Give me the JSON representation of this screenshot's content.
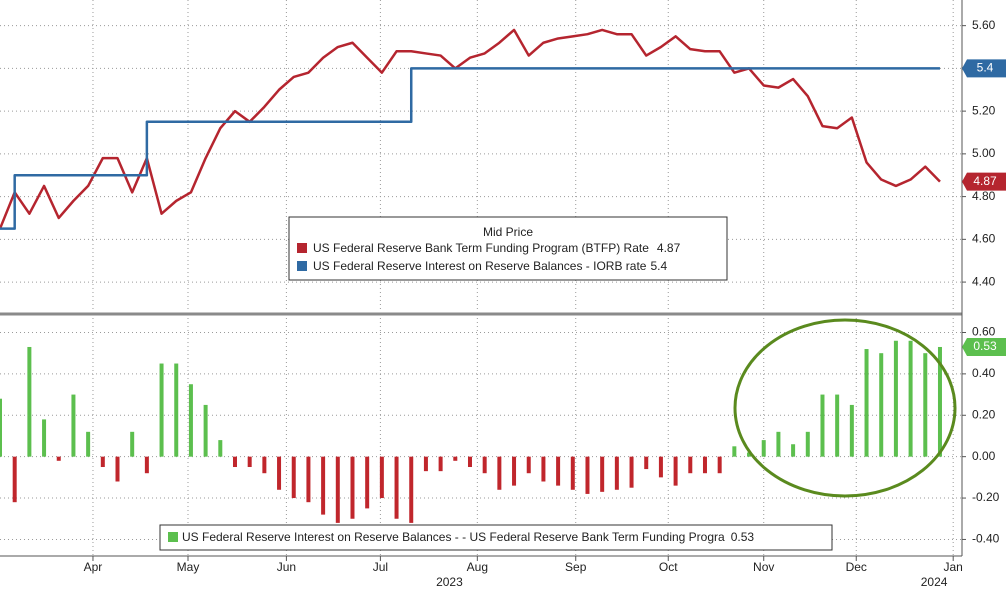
{
  "chart_data": [
    {
      "type": "line",
      "x": [
        0,
        1,
        2,
        3,
        4,
        5,
        6,
        7,
        8,
        9,
        10,
        11,
        12,
        13,
        14,
        15,
        16,
        17,
        18,
        19,
        20,
        21,
        22,
        23,
        24,
        25,
        26,
        27,
        28,
        29,
        30,
        31,
        32,
        33,
        34,
        35,
        36,
        37,
        38,
        39,
        40,
        41,
        42,
        43,
        44,
        45,
        46,
        47,
        48,
        49,
        50,
        51,
        52,
        53,
        54,
        55,
        56,
        57,
        58,
        59,
        60,
        61,
        62,
        63,
        64
      ],
      "legend_title": "Mid Price",
      "series": [
        {
          "name": "US Federal Reserve Bank Term Funding Program (BTFP) Rate",
          "color": "#b5252f",
          "values": [
            4.65,
            4.82,
            4.72,
            4.85,
            4.7,
            4.78,
            4.85,
            4.98,
            4.98,
            4.82,
            4.98,
            4.72,
            4.78,
            4.82,
            4.98,
            5.12,
            5.2,
            5.15,
            5.22,
            5.3,
            5.36,
            5.38,
            5.45,
            5.5,
            5.52,
            5.45,
            5.38,
            5.48,
            5.48,
            5.47,
            5.46,
            5.4,
            5.45,
            5.47,
            5.52,
            5.58,
            5.46,
            5.52,
            5.54,
            5.55,
            5.56,
            5.58,
            5.56,
            5.56,
            5.46,
            5.5,
            5.55,
            5.49,
            5.48,
            5.48,
            5.38,
            5.4,
            5.32,
            5.31,
            5.35,
            5.27,
            5.13,
            5.12,
            5.17,
            4.96,
            4.88,
            4.85,
            4.88,
            4.94,
            4.87
          ]
        },
        {
          "name": "US Federal Reserve Interest on Reserve Balances - IORB rate",
          "color": "#2f6aa3",
          "step": true,
          "values": [
            4.65,
            4.9,
            4.9,
            4.9,
            4.9,
            4.9,
            4.9,
            4.9,
            4.9,
            4.9,
            5.15,
            5.15,
            5.15,
            5.15,
            5.15,
            5.15,
            5.15,
            5.15,
            5.15,
            5.15,
            5.15,
            5.15,
            5.15,
            5.15,
            5.15,
            5.15,
            5.15,
            5.15,
            5.4,
            5.4,
            5.4,
            5.4,
            5.4,
            5.4,
            5.4,
            5.4,
            5.4,
            5.4,
            5.4,
            5.4,
            5.4,
            5.4,
            5.4,
            5.4,
            5.4,
            5.4,
            5.4,
            5.4,
            5.4,
            5.4,
            5.4,
            5.4,
            5.4,
            5.4,
            5.4,
            5.4,
            5.4,
            5.4,
            5.4,
            5.4,
            5.4,
            5.4,
            5.4,
            5.4,
            5.4
          ]
        }
      ],
      "ylim": [
        4.26,
        5.72
      ],
      "yticks": [
        {
          "value": 4.4,
          "label": "4.40"
        },
        {
          "value": 4.6,
          "label": "4.60"
        },
        {
          "value": 4.8,
          "label": "4.80"
        },
        {
          "value": 5.0,
          "label": "5.00"
        },
        {
          "value": 5.2,
          "label": "5.20"
        },
        {
          "value": 5.4,
          "label": "5.40"
        },
        {
          "value": 5.6,
          "label": "5.60"
        }
      ],
      "grid": true
    },
    {
      "type": "bar",
      "x": [
        0,
        1,
        2,
        3,
        4,
        5,
        6,
        7,
        8,
        9,
        10,
        11,
        12,
        13,
        14,
        15,
        16,
        17,
        18,
        19,
        20,
        21,
        22,
        23,
        24,
        25,
        26,
        27,
        28,
        29,
        30,
        31,
        32,
        33,
        34,
        35,
        36,
        37,
        38,
        39,
        40,
        41,
        42,
        43,
        44,
        45,
        46,
        47,
        48,
        49,
        50,
        51,
        52,
        53,
        54,
        55,
        56,
        57,
        58,
        59,
        60,
        61,
        62,
        63,
        64
      ],
      "series": [
        {
          "name": "US Federal Reserve Interest on Reserve Balances - - US Federal Reserve Bank Term Funding Progra",
          "color": "#5cbf4e",
          "negative_color": "#c0262c",
          "values": [
            0.28,
            -0.22,
            0.53,
            0.18,
            -0.02,
            0.3,
            0.12,
            -0.05,
            -0.12,
            0.12,
            -0.08,
            0.45,
            0.45,
            0.35,
            0.25,
            0.08,
            -0.05,
            -0.05,
            -0.08,
            -0.16,
            -0.2,
            -0.22,
            -0.28,
            -0.32,
            -0.3,
            -0.25,
            -0.2,
            -0.3,
            -0.32,
            -0.07,
            -0.07,
            -0.02,
            -0.05,
            -0.08,
            -0.16,
            -0.14,
            -0.08,
            -0.12,
            -0.14,
            -0.16,
            -0.18,
            -0.17,
            -0.16,
            -0.15,
            -0.06,
            -0.1,
            -0.14,
            -0.08,
            -0.08,
            -0.08,
            0.05,
            0.02,
            0.08,
            0.12,
            0.06,
            0.12,
            0.3,
            0.3,
            0.25,
            0.52,
            0.5,
            0.56,
            0.56,
            0.5,
            0.53
          ]
        }
      ],
      "ylim": [
        -0.48,
        0.67
      ],
      "yticks": [
        {
          "value": -0.4,
          "label": "-0.40"
        },
        {
          "value": -0.2,
          "label": "-0.20"
        },
        {
          "value": 0,
          "label": "0.00"
        },
        {
          "value": 0.2,
          "label": "0.20"
        },
        {
          "value": 0.4,
          "label": "0.40"
        },
        {
          "value": 0.6,
          "label": "0.60"
        }
      ],
      "xlim": [
        0,
        65.5
      ],
      "xticks": [
        {
          "value": 6.33,
          "label": "Apr"
        },
        {
          "value": 12.8,
          "label": "May"
        },
        {
          "value": 19.5,
          "label": "Jun"
        },
        {
          "value": 25.9,
          "label": "Jul"
        },
        {
          "value": 32.5,
          "label": "Aug"
        },
        {
          "value": 39.2,
          "label": "Sep"
        },
        {
          "value": 45.5,
          "label": "Oct"
        },
        {
          "value": 52.0,
          "label": "Nov"
        },
        {
          "value": 58.3,
          "label": "Dec"
        },
        {
          "value": 64.9,
          "label": "Jan"
        }
      ],
      "year_labels": [
        {
          "value": 30.6,
          "label": "2023"
        },
        {
          "value": 63.6,
          "label": "2024"
        }
      ],
      "grid": true
    }
  ]
}
